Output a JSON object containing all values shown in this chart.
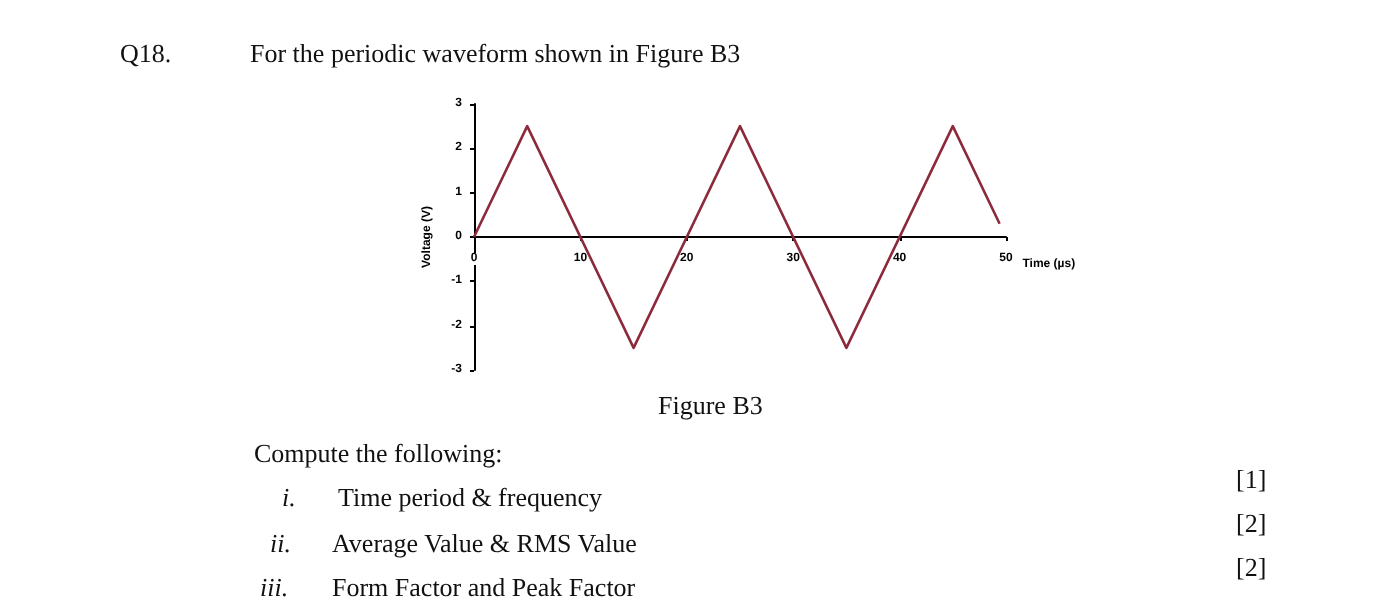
{
  "chart_data": {
    "type": "line",
    "title": "For the periodic waveform shown in Figure B3",
    "xlabel": "Time (µs)",
    "ylabel": "Voltage (V)",
    "x": [
      0,
      5,
      15,
      25,
      35,
      45,
      49.4
    ],
    "series": [
      {
        "color": "#8b2a3a",
        "values": [
          0,
          2.5,
          -2.5,
          2.5,
          -2.5,
          2.5,
          0.3
        ]
      }
    ],
    "xlim": [
      0,
      50
    ],
    "xticks": [
      0,
      10,
      20,
      30,
      40,
      50
    ],
    "ylim": [
      -3,
      3
    ],
    "yticks": [
      -3,
      -2,
      -1,
      0,
      1,
      2,
      3
    ],
    "grid": false,
    "marker": "none",
    "line_style": "solid",
    "annotations": [
      "Q18.",
      "Figure B3",
      "Compute the following:",
      "i.",
      "Time period & frequency",
      "[1]",
      "ii.",
      "Average Value & RMS Value",
      "[2]",
      "iii.",
      "Form Factor and Peak Factor",
      "[2]"
    ]
  }
}
